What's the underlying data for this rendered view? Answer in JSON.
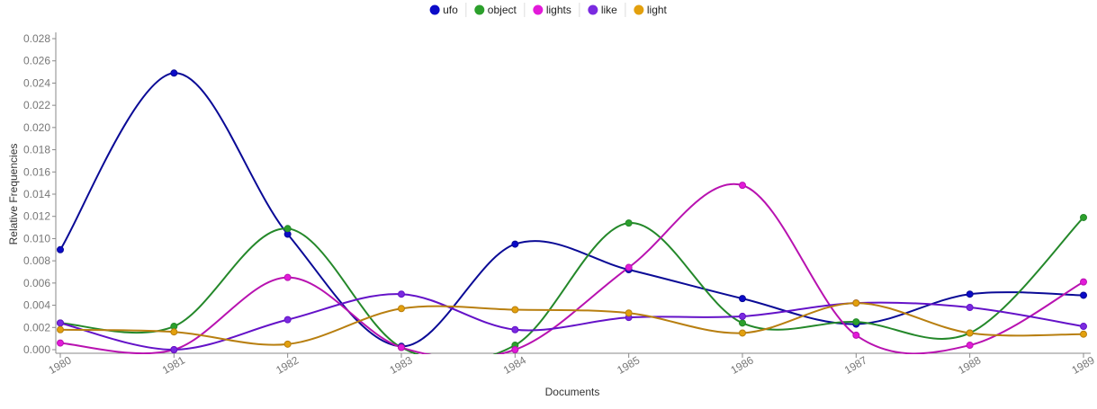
{
  "legend": [
    {
      "name": "ufo",
      "color": "#0b0bc8"
    },
    {
      "name": "object",
      "color": "#2ca02c"
    },
    {
      "name": "lights",
      "color": "#e31ad9"
    },
    {
      "name": "like",
      "color": "#7a2ae0"
    },
    {
      "name": "light",
      "color": "#e3a00d"
    }
  ],
  "chart_data": {
    "type": "line",
    "xlabel": "Documents",
    "ylabel": "Relative Frequencies",
    "categories": [
      "1980",
      "1981",
      "1982",
      "1983",
      "1984",
      "1985",
      "1986",
      "1987",
      "1988",
      "1989"
    ],
    "yticks": [
      "0.000",
      "0.002",
      "0.004",
      "0.006",
      "0.008",
      "0.010",
      "0.012",
      "0.014",
      "0.016",
      "0.018",
      "0.020",
      "0.022",
      "0.024",
      "0.026",
      "0.028"
    ],
    "ylim": [
      0,
      0.028
    ],
    "grid": false,
    "legend_position": "top-center",
    "series": [
      {
        "name": "ufo",
        "color": "#0b0bc8",
        "line_color": "#0a0a96",
        "values": [
          0.009,
          0.0249,
          0.0104,
          0.0003,
          0.0095,
          0.0072,
          0.0046,
          0.0023,
          0.005,
          0.0049
        ]
      },
      {
        "name": "object",
        "color": "#2ca02c",
        "line_color": "#24882a",
        "values": [
          0.0024,
          0.0021,
          0.0109,
          0.0002,
          0.0004,
          0.0114,
          0.0024,
          0.0025,
          0.0015,
          0.0119
        ]
      },
      {
        "name": "lights",
        "color": "#e31ad9",
        "line_color": "#b812b0",
        "values": [
          0.0006,
          0.0,
          0.0065,
          0.0002,
          0.0,
          0.0074,
          0.0148,
          0.0013,
          0.0004,
          0.0061
        ]
      },
      {
        "name": "like",
        "color": "#7a2ae0",
        "line_color": "#6412c8",
        "values": [
          0.0024,
          0.0,
          0.0027,
          0.005,
          0.0018,
          0.0029,
          0.003,
          0.0042,
          0.0038,
          0.0021
        ]
      },
      {
        "name": "light",
        "color": "#e3a00d",
        "line_color": "#b87f10",
        "values": [
          0.0018,
          0.0016,
          0.0005,
          0.0037,
          0.0036,
          0.0033,
          0.0015,
          0.0042,
          0.0015,
          0.0014
        ]
      }
    ]
  }
}
